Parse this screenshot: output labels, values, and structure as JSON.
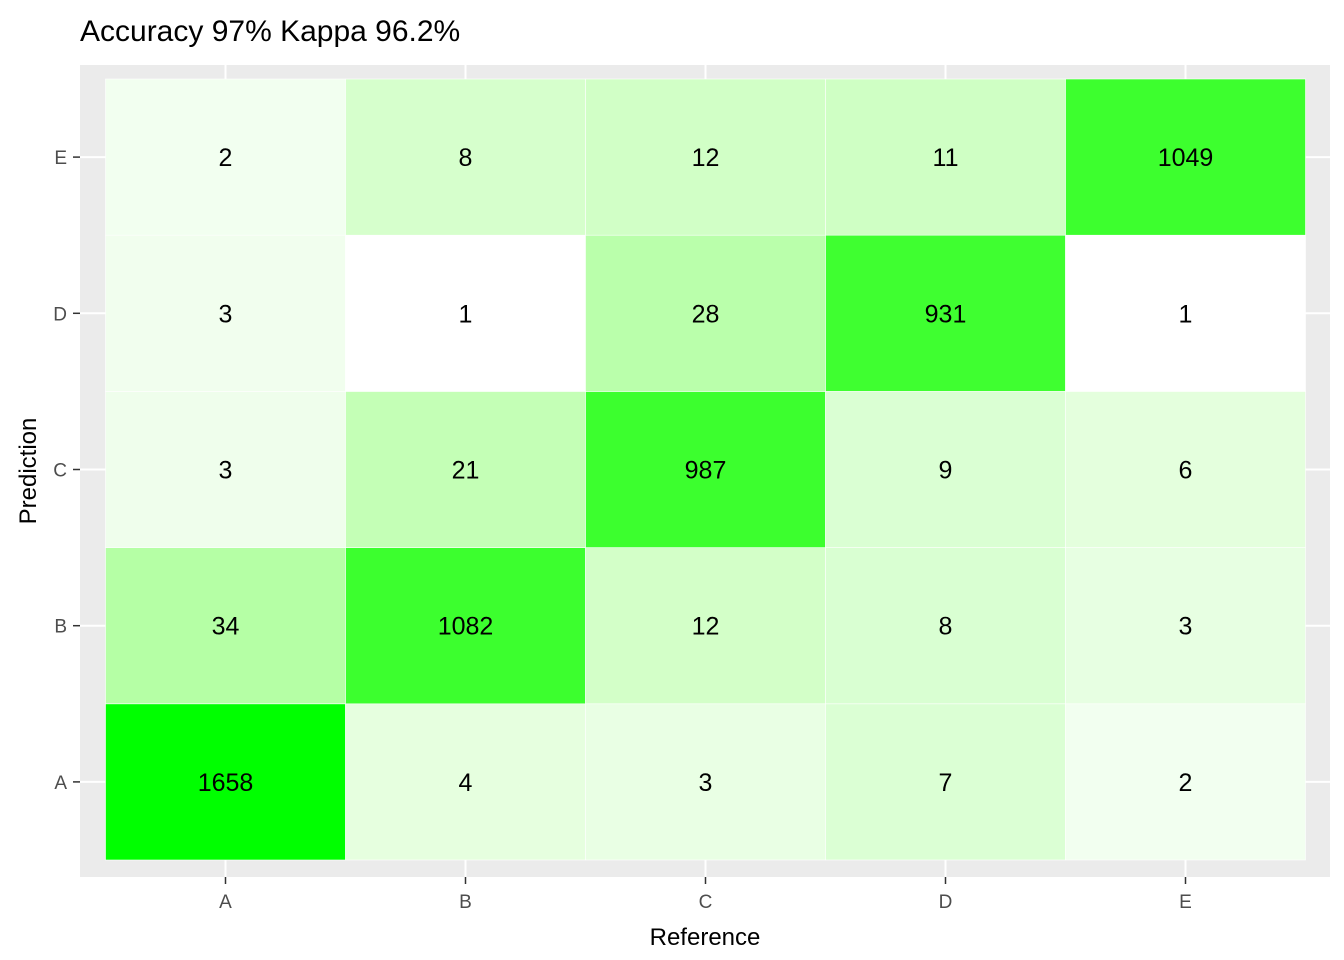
{
  "chart_data": {
    "type": "heatmap",
    "title": "Accuracy 97% Kappa 96.2%",
    "xlabel": "Reference",
    "ylabel": "Prediction",
    "x_categories": [
      "A",
      "B",
      "C",
      "D",
      "E"
    ],
    "y_categories": [
      "A",
      "B",
      "C",
      "D",
      "E"
    ],
    "values": [
      [
        1658,
        4,
        3,
        7,
        2
      ],
      [
        34,
        1082,
        12,
        8,
        3
      ],
      [
        3,
        21,
        987,
        9,
        6
      ],
      [
        3,
        1,
        28,
        931,
        1
      ],
      [
        2,
        8,
        12,
        11,
        1049
      ]
    ],
    "cell_colors": [
      [
        "#00ff00",
        "#e6ffdf",
        "#e9ffe4",
        "#dbffd4",
        "#f2fff0"
      ],
      [
        "#b5ffa5",
        "#3cff2e",
        "#d3ffc8",
        "#d9ffd2",
        "#e7ffe2"
      ],
      [
        "#effeec",
        "#c4ffb6",
        "#3cff2e",
        "#daffd3",
        "#e4ffdd"
      ],
      [
        "#f1feee",
        "#ffffff",
        "#baffab",
        "#3fff30",
        "#ffffff"
      ],
      [
        "#f2fff0",
        "#d6ffcc",
        "#d1ffc6",
        "#cfffc4",
        "#3dff2e"
      ]
    ],
    "color_low": "#ffffff",
    "color_high": "#00ff00",
    "panel_background": "#ebebeb",
    "grid": true,
    "legend": "none"
  }
}
